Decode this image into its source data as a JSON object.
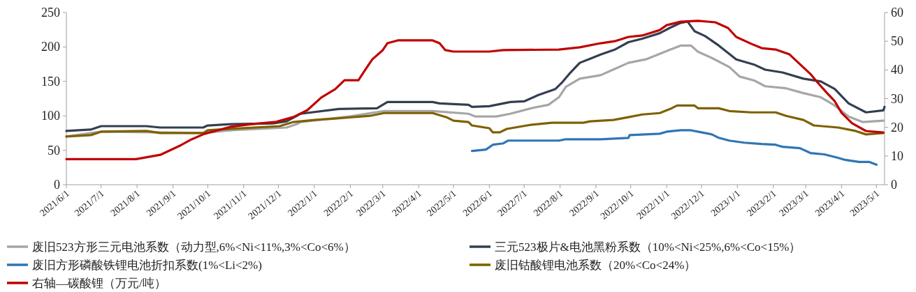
{
  "chart_data": {
    "type": "line",
    "legend": "bottom",
    "line_style": "solid",
    "xlim": [
      "2021-06-01",
      "2023-05-08"
    ],
    "xticks": [
      {
        "value": "2021-06-01",
        "label": "2021/6/1"
      },
      {
        "value": "2021-07-01",
        "label": "2021/7/1"
      },
      {
        "value": "2021-08-01",
        "label": "2021/8/1"
      },
      {
        "value": "2021-09-01",
        "label": "2021/9/1"
      },
      {
        "value": "2021-10-01",
        "label": "2021/10/1"
      },
      {
        "value": "2021-11-01",
        "label": "2021/11/1"
      },
      {
        "value": "2021-12-01",
        "label": "2021/12/1"
      },
      {
        "value": "2022-01-01",
        "label": "2022/1/1"
      },
      {
        "value": "2022-02-01",
        "label": "2022/2/1"
      },
      {
        "value": "2022-03-01",
        "label": "2022/3/1"
      },
      {
        "value": "2022-04-01",
        "label": "2022/4/1"
      },
      {
        "value": "2022-05-01",
        "label": "2022/5/1"
      },
      {
        "value": "2022-06-01",
        "label": "2022/6/1"
      },
      {
        "value": "2022-07-01",
        "label": "2022/7/1"
      },
      {
        "value": "2022-08-01",
        "label": "2022/8/1"
      },
      {
        "value": "2022-09-01",
        "label": "2022/9/1"
      },
      {
        "value": "2022-10-01",
        "label": "2022/10/1"
      },
      {
        "value": "2022-11-01",
        "label": "2022/11/1"
      },
      {
        "value": "2022-12-01",
        "label": "2022/12/1"
      },
      {
        "value": "2023-01-01",
        "label": "2023/1/1"
      },
      {
        "value": "2023-02-01",
        "label": "2023/2/1"
      },
      {
        "value": "2023-03-01",
        "label": "2023/3/1"
      },
      {
        "value": "2023-04-01",
        "label": "2023/4/1"
      },
      {
        "value": "2023-05-01",
        "label": "2023/5/1"
      }
    ],
    "ylim": [
      0,
      250
    ],
    "yticks": [
      0,
      50,
      100,
      150,
      200,
      250
    ],
    "y2lim": [
      0,
      60
    ],
    "y2ticks": [
      0,
      10,
      20,
      30,
      40,
      50,
      60
    ],
    "series": [
      {
        "name": "废旧523方形三元电池系数（动力型,6%<Ni<11%,3%<Co<6%）",
        "color": "#a6a6a6",
        "x": [
          "2021-06-01",
          "2021-07-01",
          "2021-09-27",
          "2021-10-21",
          "2021-12-08",
          "2021-12-17",
          "2021-12-20",
          "2022-01-31",
          "2022-03-02",
          "2022-04-13",
          "2022-05-14",
          "2022-05-20",
          "2022-06-07",
          "2022-06-19",
          "2022-07-07",
          "2022-07-22",
          "2022-07-31",
          "2022-08-06",
          "2022-08-18",
          "2022-09-05",
          "2022-09-17",
          "2022-09-29",
          "2022-10-14",
          "2022-10-26",
          "2022-11-04",
          "2022-11-13",
          "2022-11-22",
          "2022-11-28",
          "2022-12-10",
          "2022-12-25",
          "2023-01-03",
          "2023-01-16",
          "2023-01-25",
          "2023-02-12",
          "2023-02-27",
          "2023-03-14",
          "2023-03-26",
          "2023-04-07",
          "2023-04-19",
          "2023-05-07"
        ],
        "values": [
          70,
          77,
          75,
          79,
          83,
          88,
          91,
          99,
          107,
          107,
          103,
          99,
          99,
          103,
          111,
          116,
          127,
          142,
          154,
          159,
          168,
          177,
          182,
          190,
          196,
          202,
          202,
          193,
          184,
          171,
          157,
          151,
          143,
          140,
          133,
          127,
          115,
          99,
          91,
          93
        ]
      },
      {
        "name": "三元523极片&电池黑粉系数（10%<Ni<25%,6%<Co<15%）",
        "color": "#333f50",
        "x": [
          "2021-06-01",
          "2021-06-22",
          "2021-07-01",
          "2021-08-09",
          "2021-08-21",
          "2021-09-27",
          "2021-10-01",
          "2021-10-21",
          "2021-11-26",
          "2021-12-08",
          "2021-12-17",
          "2021-12-20",
          "2022-01-22",
          "2022-02-24",
          "2022-03-05",
          "2022-04-13",
          "2022-04-19",
          "2022-05-14",
          "2022-05-17",
          "2022-06-01",
          "2022-06-19",
          "2022-07-01",
          "2022-07-13",
          "2022-07-28",
          "2022-08-03",
          "2022-08-09",
          "2022-08-18",
          "2022-08-27",
          "2022-09-05",
          "2022-09-17",
          "2022-09-29",
          "2022-10-11",
          "2022-10-26",
          "2022-11-04",
          "2022-11-13",
          "2022-11-19",
          "2022-11-25",
          "2022-12-04",
          "2022-12-16",
          "2022-12-31",
          "2023-01-16",
          "2023-01-25",
          "2023-02-09",
          "2023-02-27",
          "2023-03-14",
          "2023-03-26",
          "2023-04-07",
          "2023-04-22",
          "2023-05-07",
          "2023-05-08"
        ],
        "values": [
          78,
          80,
          85,
          85,
          83,
          83,
          86,
          88,
          89,
          92,
          100,
          103,
          110,
          111,
          120,
          120,
          118,
          116,
          113,
          114,
          120,
          121,
          130,
          139,
          149,
          161,
          177,
          183,
          189,
          196,
          207,
          212,
          220,
          228,
          235,
          237,
          223,
          216,
          202,
          182,
          174,
          167,
          163,
          154,
          150,
          139,
          118,
          105,
          108,
          113
        ]
      },
      {
        "name": "废旧方形磷酸铁锂电池折扣系数(1%<Li<2%)",
        "color": "#2e75b6",
        "x": [
          "2022-05-17",
          "2022-05-29",
          "2022-06-04",
          "2022-06-13",
          "2022-06-17",
          "2022-07-31",
          "2022-08-06",
          "2022-09-05",
          "2022-09-29",
          "2022-09-30",
          "2022-10-26",
          "2022-11-01",
          "2022-11-13",
          "2022-11-22",
          "2022-12-01",
          "2022-12-10",
          "2022-12-16",
          "2022-12-25",
          "2023-01-07",
          "2023-01-22",
          "2023-02-03",
          "2023-02-09",
          "2023-02-24",
          "2023-03-05",
          "2023-03-17",
          "2023-03-29",
          "2023-04-04",
          "2023-04-16",
          "2023-04-25",
          "2023-05-01"
        ],
        "values": [
          49,
          51,
          58,
          60,
          64,
          64,
          66,
          66,
          68,
          72,
          74,
          77,
          79,
          79,
          76,
          73,
          68,
          64,
          61,
          59,
          58,
          55,
          53,
          46,
          44,
          39,
          36,
          33,
          33,
          29
        ]
      },
      {
        "name": "废旧钴酸锂电池系数（20%<Co<24%）",
        "color": "#7f6000",
        "x": [
          "2021-06-01",
          "2021-06-22",
          "2021-07-01",
          "2021-08-09",
          "2021-08-21",
          "2021-09-27",
          "2021-10-01",
          "2021-10-21",
          "2021-12-02",
          "2021-12-14",
          "2022-01-01",
          "2022-01-19",
          "2022-02-18",
          "2022-03-02",
          "2022-04-13",
          "2022-04-25",
          "2022-05-01",
          "2022-05-14",
          "2022-05-17",
          "2022-06-01",
          "2022-06-04",
          "2022-06-10",
          "2022-06-16",
          "2022-07-07",
          "2022-07-25",
          "2022-08-21",
          "2022-08-27",
          "2022-09-16",
          "2022-09-29",
          "2022-10-11",
          "2022-10-26",
          "2022-11-04",
          "2022-11-10",
          "2022-11-25",
          "2022-11-28",
          "2022-12-16",
          "2022-12-25",
          "2023-01-13",
          "2023-02-03",
          "2023-02-12",
          "2023-02-27",
          "2023-03-08",
          "2023-03-29",
          "2023-04-13",
          "2023-04-22",
          "2023-05-07"
        ],
        "values": [
          70,
          72,
          77,
          78,
          75,
          75,
          79,
          81,
          85,
          91,
          94,
          96,
          100,
          104,
          104,
          98,
          93,
          91,
          86,
          82,
          76,
          76,
          81,
          87,
          90,
          90,
          92,
          94,
          98,
          102,
          104,
          110,
          115,
          115,
          111,
          111,
          107,
          105,
          105,
          100,
          94,
          86,
          83,
          78,
          73,
          75
        ]
      },
      {
        "name": "右轴—碳酸锂（万元/吨）",
        "color": "#c00000",
        "axis": "y2",
        "x": [
          "2021-06-01",
          "2021-07-31",
          "2021-08-21",
          "2021-08-30",
          "2021-09-08",
          "2021-09-17",
          "2021-09-28",
          "2021-10-09",
          "2021-10-21",
          "2021-11-08",
          "2021-11-29",
          "2021-12-14",
          "2021-12-26",
          "2022-01-07",
          "2022-01-19",
          "2022-01-27",
          "2022-02-08",
          "2022-02-14",
          "2022-02-20",
          "2022-03-01",
          "2022-03-05",
          "2022-03-14",
          "2022-04-13",
          "2022-04-19",
          "2022-04-24",
          "2022-05-01",
          "2022-06-01",
          "2022-06-13",
          "2022-07-31",
          "2022-08-18",
          "2022-09-05",
          "2022-09-17",
          "2022-09-29",
          "2022-10-11",
          "2022-10-26",
          "2022-11-01",
          "2022-11-13",
          "2022-11-28",
          "2022-12-13",
          "2022-12-24",
          "2022-12-31",
          "2023-01-13",
          "2023-01-22",
          "2023-02-03",
          "2023-02-15",
          "2023-02-24",
          "2023-03-05",
          "2023-03-11",
          "2023-03-19",
          "2023-03-26",
          "2023-04-01",
          "2023-04-10",
          "2023-04-22",
          "2023-05-07"
        ],
        "values": [
          8.9,
          8.9,
          10.4,
          12.1,
          13.8,
          15.8,
          17.7,
          18.9,
          20.2,
          21.1,
          21.9,
          23.6,
          26.0,
          30.4,
          33.3,
          36.4,
          36.4,
          40.1,
          43.7,
          46.9,
          49.3,
          50.3,
          50.3,
          49.3,
          46.9,
          46.4,
          46.4,
          46.9,
          47.1,
          47.9,
          49.3,
          50.0,
          51.5,
          52.0,
          53.9,
          55.6,
          56.8,
          57.1,
          56.6,
          54.6,
          51.5,
          49.1,
          47.6,
          47.1,
          45.4,
          42.0,
          38.6,
          35.7,
          32.1,
          29.1,
          25.0,
          21.4,
          18.7,
          18.2
        ]
      }
    ]
  }
}
